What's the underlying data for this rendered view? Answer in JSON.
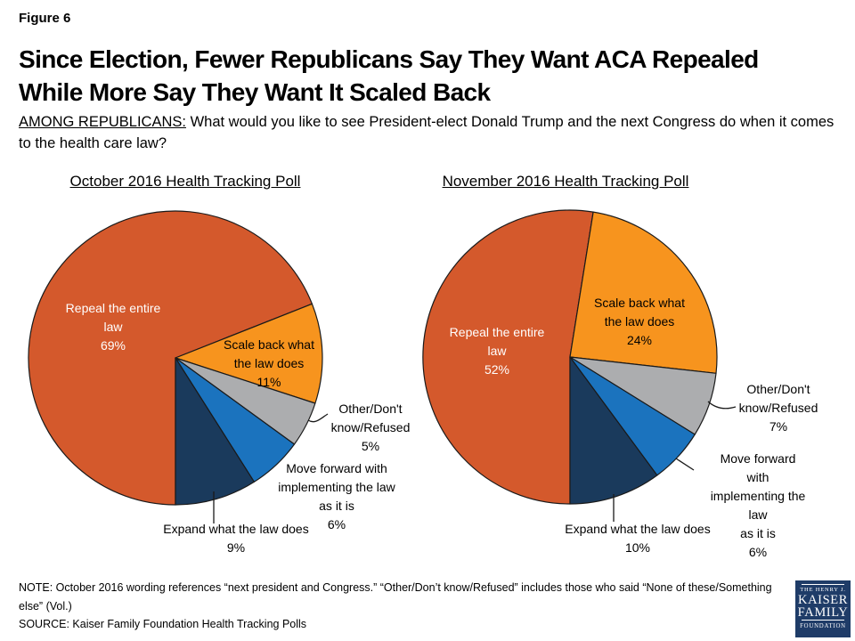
{
  "figure_label": "Figure 6",
  "title_line1": "Since Election, Fewer Republicans Say They Want ACA Repealed",
  "title_line2": "While More Say They Want It Scaled Back",
  "subtitle_label": "AMONG REPUBLICANS:",
  "subtitle_text": "What would you like to see President-elect Donald Trump and the next Congress do when it comes to the health care law?",
  "chart_data": [
    {
      "type": "pie",
      "title": "October 2016 Health Tracking Poll",
      "start_angle_deg": 180,
      "direction": "clockwise",
      "slices": [
        {
          "label": "Repeal the entire law",
          "value": 69,
          "pct": "69%",
          "color": "#D4592C",
          "label_lines": [
            "Repeal the entire",
            "law",
            "69%"
          ]
        },
        {
          "label": "Scale back what the law does",
          "value": 11,
          "pct": "11%",
          "color": "#F7941E",
          "label_lines": [
            "Scale back what",
            "the law does",
            "11%"
          ]
        },
        {
          "label": "Other/Don't know/Refused",
          "value": 5,
          "pct": "5%",
          "color": "#ACADAF",
          "label_lines": [
            "Other/Don't",
            "know/Refused",
            "5%"
          ]
        },
        {
          "label": "Move forward with implementing the law as it is",
          "value": 6,
          "pct": "6%",
          "color": "#1B73BE",
          "label_lines": [
            "Move forward with",
            "implementing the law",
            "as it is",
            "6%"
          ]
        },
        {
          "label": "Expand what the law does",
          "value": 9,
          "pct": "9%",
          "color": "#1A3A5C",
          "label_lines": [
            "Expand what the law does",
            "9%"
          ]
        }
      ]
    },
    {
      "type": "pie",
      "title": "November 2016 Health Tracking Poll",
      "start_angle_deg": 180,
      "direction": "clockwise",
      "slices": [
        {
          "label": "Repeal the entire law",
          "value": 52,
          "pct": "52%",
          "color": "#D4592C",
          "label_lines": [
            "Repeal the entire",
            "law",
            "52%"
          ]
        },
        {
          "label": "Scale back what the law does",
          "value": 24,
          "pct": "24%",
          "color": "#F7941E",
          "label_lines": [
            "Scale back what",
            "the law does",
            "24%"
          ]
        },
        {
          "label": "Other/Don't know/Refused",
          "value": 7,
          "pct": "7%",
          "color": "#ACADAF",
          "label_lines": [
            "Other/Don't",
            "know/Refused",
            "7%"
          ]
        },
        {
          "label": "Move forward with implementing the law as it is",
          "value": 6,
          "pct": "6%",
          "color": "#1B73BE",
          "label_lines": [
            "Move forward with",
            "implementing the law",
            "as it is",
            "6%"
          ]
        },
        {
          "label": "Expand what the law does",
          "value": 10,
          "pct": "10%",
          "color": "#1A3A5C",
          "label_lines": [
            "Expand what the law does",
            "10%"
          ]
        }
      ]
    }
  ],
  "footer": {
    "note": "NOTE: October 2016 wording references “next president and Congress.” “Other/Don’t know/Refused” includes those who said “None of these/Something else” (Vol.)",
    "source": "SOURCE: Kaiser Family Foundation Health Tracking Polls"
  },
  "logo": {
    "line1": "THE HENRY J.",
    "line2": "KAISER",
    "line3": "FAMILY",
    "line4": "FOUNDATION",
    "bg_color": "#1F3C68"
  }
}
